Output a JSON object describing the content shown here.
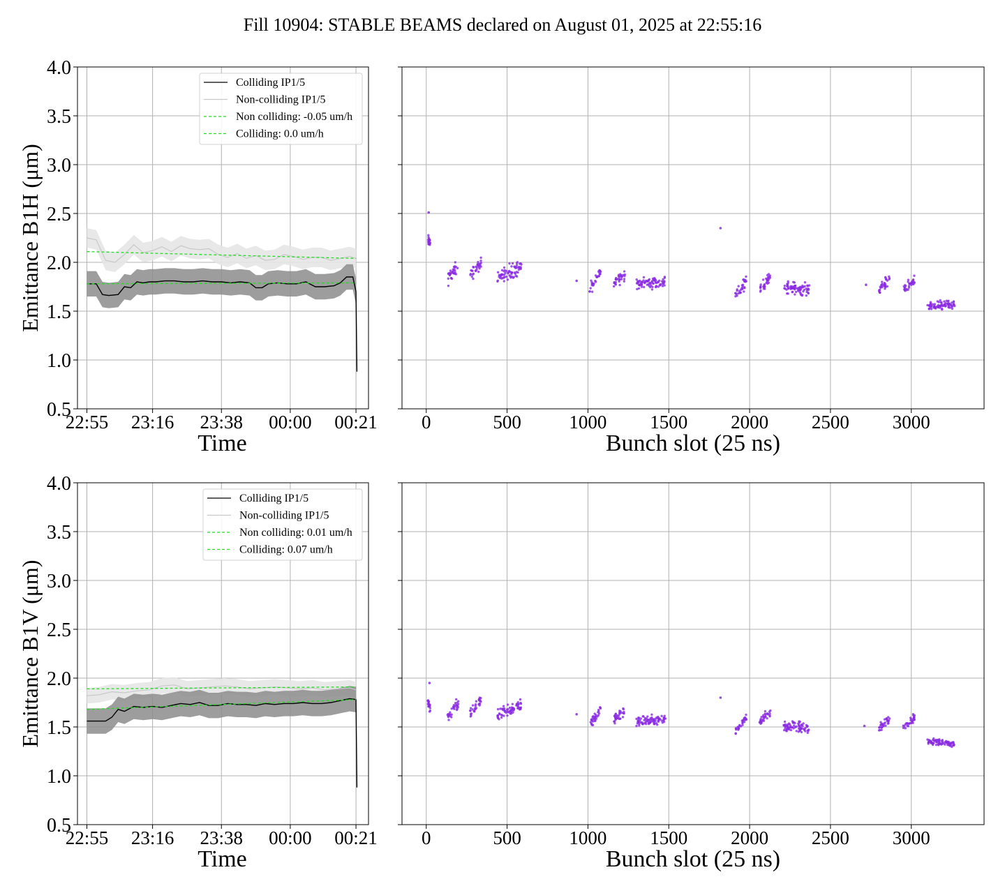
{
  "title": "Fill 10904: STABLE BEAMS declared on August 01, 2025 at 22:55:16",
  "colors": {
    "colliding": "#000000",
    "colliding_band": "#8c8c8c",
    "noncolliding": "#c8c8c8",
    "noncolliding_band": "#e6e6e6",
    "fit": "#22dd22",
    "scatter": "#8a2be2",
    "grid": "#b0b0b0"
  },
  "chart_data": [
    {
      "type": "line",
      "panel": "B1H-time",
      "xlabel": "Time",
      "ylabel": "Emittance B1H (μm)",
      "ylim": [
        0.5,
        4.0
      ],
      "yticks": [
        "0.5",
        "1.0",
        "1.5",
        "2.0",
        "2.5",
        "3.0",
        "3.5",
        "4.0"
      ],
      "xticks": [
        "22:55",
        "23:16",
        "23:38",
        "00:00",
        "00:21"
      ],
      "x_minutes_after_22_55": [
        0,
        21,
        43,
        65,
        86
      ],
      "xlim_minutes": [
        -3,
        90
      ],
      "grid": true,
      "legend_position": "upper right",
      "legend": [
        "Colliding IP1/5",
        "Non-colliding IP1/5",
        "Non colliding: -0.05 um/h",
        "Colliding: 0.0 um/h"
      ],
      "series": [
        {
          "name": "Colliding IP1/5",
          "style": "mean-with-band",
          "x": [
            0,
            3,
            5,
            7,
            10,
            12,
            14,
            16,
            18,
            20,
            22,
            25,
            28,
            31,
            34,
            37,
            40,
            43,
            46,
            49,
            52,
            54,
            56,
            58,
            61,
            64,
            67,
            70,
            73,
            76,
            79,
            81,
            83,
            85,
            86,
            86.3
          ],
          "y": [
            1.78,
            1.78,
            1.67,
            1.66,
            1.67,
            1.75,
            1.74,
            1.8,
            1.79,
            1.8,
            1.8,
            1.81,
            1.81,
            1.8,
            1.8,
            1.81,
            1.8,
            1.8,
            1.79,
            1.8,
            1.79,
            1.74,
            1.74,
            1.78,
            1.79,
            1.78,
            1.78,
            1.8,
            1.75,
            1.75,
            1.76,
            1.79,
            1.85,
            1.85,
            1.7,
            0.88
          ],
          "band": 0.13
        },
        {
          "name": "Non-colliding IP1/5",
          "style": "mean-with-band",
          "x": [
            0,
            3,
            6,
            9,
            12,
            15,
            18,
            21,
            24,
            27,
            30,
            33,
            36,
            39,
            42,
            45,
            48,
            51,
            54,
            57,
            60,
            63,
            66,
            69,
            72,
            75,
            78,
            81,
            84,
            86
          ],
          "y": [
            2.25,
            2.23,
            2.02,
            2.0,
            2.08,
            2.18,
            2.1,
            2.12,
            2.16,
            2.11,
            2.17,
            2.14,
            2.13,
            2.14,
            2.08,
            2.05,
            2.09,
            2.04,
            2.07,
            2.02,
            2.03,
            2.08,
            2.06,
            2.03,
            2.05,
            2.05,
            2.02,
            2.04,
            2.06,
            2.04
          ],
          "band": 0.1
        },
        {
          "name": "Non colliding: -0.05 um/h",
          "style": "dashed",
          "x": [
            0,
            86
          ],
          "y": [
            2.11,
            2.04
          ]
        },
        {
          "name": "Colliding: 0.0 um/h",
          "style": "dashed",
          "x": [
            0,
            86
          ],
          "y": [
            1.78,
            1.79
          ]
        }
      ]
    },
    {
      "type": "scatter",
      "panel": "B1H-bunch",
      "xlabel": "Bunch slot (25 ns)",
      "xlim": [
        -150,
        3450
      ],
      "ylim": [
        0.5,
        4.0
      ],
      "xticks": [
        "0",
        "500",
        "1000",
        "1500",
        "2000",
        "2500",
        "3000"
      ],
      "grid": true,
      "groups": [
        {
          "start": 10,
          "end": 25,
          "y": [
            2.23,
            2.2
          ],
          "spread": 0.08
        },
        {
          "start": 130,
          "end": 200,
          "y": [
            1.82,
            1.97
          ],
          "spread": 0.1
        },
        {
          "start": 270,
          "end": 340,
          "y": [
            1.85,
            2.0
          ],
          "spread": 0.09
        },
        {
          "start": 440,
          "end": 590,
          "y": [
            1.85,
            1.95
          ],
          "spread": 0.11
        },
        {
          "start": 1010,
          "end": 1080,
          "y": [
            1.73,
            1.9
          ],
          "spread": 0.09
        },
        {
          "start": 1160,
          "end": 1230,
          "y": [
            1.8,
            1.88
          ],
          "spread": 0.09
        },
        {
          "start": 1300,
          "end": 1480,
          "y": [
            1.78,
            1.8
          ],
          "spread": 0.08
        },
        {
          "start": 1910,
          "end": 1980,
          "y": [
            1.68,
            1.8
          ],
          "spread": 0.09
        },
        {
          "start": 2060,
          "end": 2130,
          "y": [
            1.72,
            1.85
          ],
          "spread": 0.09
        },
        {
          "start": 2210,
          "end": 2370,
          "y": [
            1.75,
            1.72
          ],
          "spread": 0.09
        },
        {
          "start": 2800,
          "end": 2870,
          "y": [
            1.7,
            1.85
          ],
          "spread": 0.08
        },
        {
          "start": 2950,
          "end": 3020,
          "y": [
            1.72,
            1.82
          ],
          "spread": 0.08
        },
        {
          "start": 3100,
          "end": 3270,
          "y": [
            1.55,
            1.57
          ],
          "spread": 0.06
        }
      ],
      "singles": [
        {
          "x": 15,
          "y": 2.51
        },
        {
          "x": 930,
          "y": 1.81
        },
        {
          "x": 1820,
          "y": 2.35
        },
        {
          "x": 2720,
          "y": 1.77
        }
      ]
    },
    {
      "type": "line",
      "panel": "B1V-time",
      "xlabel": "Time",
      "ylabel": "Emittance B1V (μm)",
      "ylim": [
        0.5,
        4.0
      ],
      "yticks": [
        "0.5",
        "1.0",
        "1.5",
        "2.0",
        "2.5",
        "3.0",
        "3.5",
        "4.0"
      ],
      "xticks": [
        "22:55",
        "23:16",
        "23:38",
        "00:00",
        "00:21"
      ],
      "x_minutes_after_22_55": [
        0,
        21,
        43,
        65,
        86
      ],
      "xlim_minutes": [
        -3,
        90
      ],
      "grid": true,
      "legend_position": "upper right",
      "legend": [
        "Colliding IP1/5",
        "Non-colliding IP1/5",
        "Non colliding: 0.01 um/h",
        "Colliding: 0.07 um/h"
      ],
      "series": [
        {
          "name": "Colliding IP1/5",
          "style": "mean-with-band",
          "x": [
            0,
            3,
            6,
            8,
            10,
            12,
            15,
            18,
            21,
            24,
            27,
            30,
            33,
            36,
            39,
            42,
            45,
            48,
            51,
            54,
            57,
            60,
            63,
            66,
            69,
            72,
            75,
            78,
            81,
            84,
            86,
            86.3
          ],
          "y": [
            1.56,
            1.56,
            1.56,
            1.6,
            1.68,
            1.66,
            1.71,
            1.7,
            1.71,
            1.7,
            1.72,
            1.74,
            1.73,
            1.75,
            1.72,
            1.72,
            1.74,
            1.73,
            1.73,
            1.72,
            1.74,
            1.73,
            1.74,
            1.74,
            1.75,
            1.74,
            1.74,
            1.75,
            1.77,
            1.79,
            1.78,
            0.88
          ],
          "band": 0.13
        },
        {
          "name": "Non-colliding IP1/5",
          "style": "mean-with-band",
          "x": [
            0,
            4,
            8,
            12,
            16,
            20,
            24,
            28,
            32,
            36,
            40,
            44,
            48,
            52,
            56,
            60,
            64,
            68,
            72,
            76,
            80,
            84,
            86
          ],
          "y": [
            1.82,
            1.83,
            1.86,
            1.85,
            1.87,
            1.88,
            1.92,
            1.93,
            1.89,
            1.9,
            1.91,
            1.92,
            1.91,
            1.89,
            1.9,
            1.91,
            1.9,
            1.89,
            1.9,
            1.88,
            1.89,
            1.9,
            1.88
          ],
          "band": 0.08
        },
        {
          "name": "Non colliding: 0.01 um/h",
          "style": "dashed",
          "x": [
            0,
            86
          ],
          "y": [
            1.89,
            1.91
          ]
        },
        {
          "name": "Colliding: 0.07 um/h",
          "style": "dashed",
          "x": [
            0,
            86
          ],
          "y": [
            1.68,
            1.78
          ]
        }
      ]
    },
    {
      "type": "scatter",
      "panel": "B1V-bunch",
      "xlabel": "Bunch slot (25 ns)",
      "xlim": [
        -150,
        3450
      ],
      "ylim": [
        0.5,
        4.0
      ],
      "xticks": [
        "0",
        "500",
        "1000",
        "1500",
        "2000",
        "2500",
        "3000"
      ],
      "grid": true,
      "groups": [
        {
          "start": 10,
          "end": 25,
          "y": [
            1.75,
            1.68
          ],
          "spread": 0.07
        },
        {
          "start": 130,
          "end": 200,
          "y": [
            1.58,
            1.75
          ],
          "spread": 0.09
        },
        {
          "start": 270,
          "end": 340,
          "y": [
            1.62,
            1.78
          ],
          "spread": 0.08
        },
        {
          "start": 440,
          "end": 590,
          "y": [
            1.62,
            1.72
          ],
          "spread": 0.1
        },
        {
          "start": 1010,
          "end": 1080,
          "y": [
            1.52,
            1.68
          ],
          "spread": 0.08
        },
        {
          "start": 1160,
          "end": 1230,
          "y": [
            1.58,
            1.66
          ],
          "spread": 0.08
        },
        {
          "start": 1300,
          "end": 1480,
          "y": [
            1.55,
            1.58
          ],
          "spread": 0.07
        },
        {
          "start": 1910,
          "end": 1980,
          "y": [
            1.45,
            1.6
          ],
          "spread": 0.07
        },
        {
          "start": 2060,
          "end": 2130,
          "y": [
            1.55,
            1.65
          ],
          "spread": 0.07
        },
        {
          "start": 2210,
          "end": 2370,
          "y": [
            1.52,
            1.48
          ],
          "spread": 0.08
        },
        {
          "start": 2800,
          "end": 2870,
          "y": [
            1.48,
            1.6
          ],
          "spread": 0.07
        },
        {
          "start": 2950,
          "end": 3020,
          "y": [
            1.5,
            1.6
          ],
          "spread": 0.07
        },
        {
          "start": 3100,
          "end": 3270,
          "y": [
            1.35,
            1.33
          ],
          "spread": 0.05
        }
      ],
      "singles": [
        {
          "x": 20,
          "y": 1.95
        },
        {
          "x": 930,
          "y": 1.63
        },
        {
          "x": 1820,
          "y": 1.8
        },
        {
          "x": 2710,
          "y": 1.51
        }
      ]
    }
  ]
}
